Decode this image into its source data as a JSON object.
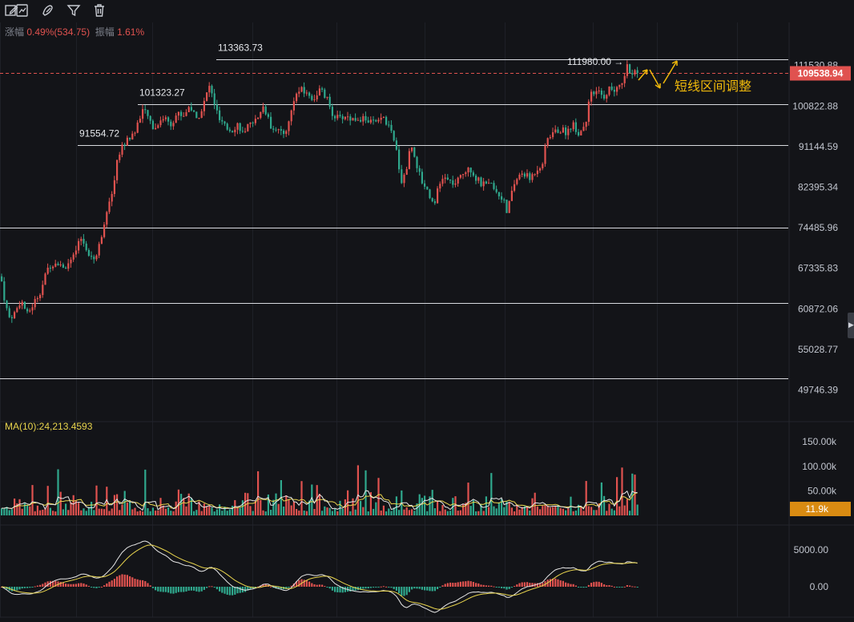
{
  "toolbar": {
    "icons": [
      "edit-icon",
      "pencil-icon",
      "filter-icon",
      "trash-icon"
    ]
  },
  "stats": {
    "change_label": "涨幅",
    "change_value": "0.49%(534.75)",
    "amplitude_label": "振幅",
    "amplitude_value": "1.61%"
  },
  "colors": {
    "up": "#e0524f",
    "down": "#2fa88d",
    "background": "#131418",
    "annotation": "#f0b90b",
    "ma_yellow": "#e8d44d",
    "ma_white": "#e6e6e6",
    "volume_badge": "#d98b12",
    "price_badge": "#e0524f"
  },
  "price_pane": {
    "current_price": "109538.94",
    "y_axis_ticks": [
      "111530.88",
      "100822.88",
      "91144.59",
      "82395.34",
      "74485.96",
      "67335.83",
      "60872.06",
      "55028.77",
      "49746.39"
    ],
    "levels": [
      {
        "label": "113363.73",
        "price": 113363.73
      },
      {
        "label": "101323.27",
        "price": 101323.27
      },
      {
        "label": "91554.72",
        "price": 91554.72
      },
      {
        "label": "",
        "price": 74485.96
      },
      {
        "label": "",
        "price": 61800
      },
      {
        "label": "",
        "price": 51200
      }
    ],
    "high_marker": "111980.00",
    "annotation_text": "短线区间调整"
  },
  "volume_pane": {
    "ma_label": "MA(10):24,213.4593",
    "y_axis_ticks": [
      "150.00k",
      "100.00k",
      "50.00k"
    ],
    "current_volume": "11.9k"
  },
  "macd_pane": {
    "y_axis_ticks": [
      "5000.00",
      "0.00"
    ]
  },
  "chart_data": {
    "type": "candlestick",
    "y_scale": "log",
    "price_range": [
      47000,
      120000
    ],
    "volume_range": [
      0,
      160000
    ],
    "macd_range": [
      -2000,
      6000
    ],
    "price_path": [
      [
        0,
        66000
      ],
      [
        5,
        62000
      ],
      [
        10,
        59500
      ],
      [
        18,
        60300
      ],
      [
        25,
        62300
      ],
      [
        33,
        60000
      ],
      [
        40,
        61500
      ],
      [
        50,
        63800
      ],
      [
        60,
        67800
      ],
      [
        70,
        68500
      ],
      [
        80,
        67500
      ],
      [
        90,
        69000
      ],
      [
        100,
        72500
      ],
      [
        110,
        70000
      ],
      [
        118,
        68800
      ],
      [
        125,
        72500
      ],
      [
        130,
        76500
      ],
      [
        138,
        80000
      ],
      [
        145,
        88000
      ],
      [
        152,
        91500
      ],
      [
        160,
        93000
      ],
      [
        168,
        94800
      ],
      [
        176,
        100000
      ],
      [
        184,
        98000
      ],
      [
        192,
        95000
      ],
      [
        198,
        97500
      ],
      [
        205,
        98000
      ],
      [
        212,
        96500
      ],
      [
        220,
        99000
      ],
      [
        228,
        98500
      ],
      [
        236,
        101000
      ],
      [
        244,
        97500
      ],
      [
        252,
        100500
      ],
      [
        260,
        106000
      ],
      [
        266,
        102000
      ],
      [
        272,
        97500
      ],
      [
        280,
        95500
      ],
      [
        288,
        95000
      ],
      [
        296,
        96500
      ],
      [
        304,
        93500
      ],
      [
        312,
        97500
      ],
      [
        320,
        97000
      ],
      [
        328,
        101000
      ],
      [
        336,
        96000
      ],
      [
        344,
        95500
      ],
      [
        352,
        93500
      ],
      [
        360,
        97000
      ],
      [
        366,
        103000
      ],
      [
        374,
        105000
      ],
      [
        382,
        104000
      ],
      [
        390,
        102500
      ],
      [
        398,
        105000
      ],
      [
        406,
        103000
      ],
      [
        414,
        99000
      ],
      [
        422,
        97500
      ],
      [
        430,
        98500
      ],
      [
        438,
        97500
      ],
      [
        446,
        98000
      ],
      [
        454,
        97500
      ],
      [
        462,
        97000
      ],
      [
        470,
        96500
      ],
      [
        478,
        98000
      ],
      [
        486,
        95000
      ],
      [
        494,
        90000
      ],
      [
        500,
        83500
      ],
      [
        506,
        86000
      ],
      [
        512,
        92000
      ],
      [
        518,
        88000
      ],
      [
        524,
        84000
      ],
      [
        532,
        82000
      ],
      [
        540,
        79000
      ],
      [
        546,
        82000
      ],
      [
        552,
        84500
      ],
      [
        560,
        83500
      ],
      [
        568,
        83000
      ],
      [
        576,
        85000
      ],
      [
        584,
        87000
      ],
      [
        592,
        84500
      ],
      [
        600,
        83000
      ],
      [
        608,
        82500
      ],
      [
        614,
        83000
      ],
      [
        620,
        81000
      ],
      [
        626,
        80500
      ],
      [
        632,
        77000
      ],
      [
        638,
        82000
      ],
      [
        644,
        84000
      ],
      [
        652,
        85500
      ],
      [
        660,
        84000
      ],
      [
        668,
        86000
      ],
      [
        676,
        87500
      ],
      [
        682,
        93000
      ],
      [
        690,
        94500
      ],
      [
        698,
        95000
      ],
      [
        706,
        94500
      ],
      [
        714,
        96500
      ],
      [
        722,
        94000
      ],
      [
        730,
        97000
      ],
      [
        736,
        103500
      ],
      [
        744,
        104500
      ],
      [
        752,
        103000
      ],
      [
        760,
        105500
      ],
      [
        768,
        104500
      ],
      [
        776,
        107500
      ],
      [
        782,
        111500
      ],
      [
        788,
        109000
      ],
      [
        795,
        109539
      ]
    ]
  }
}
